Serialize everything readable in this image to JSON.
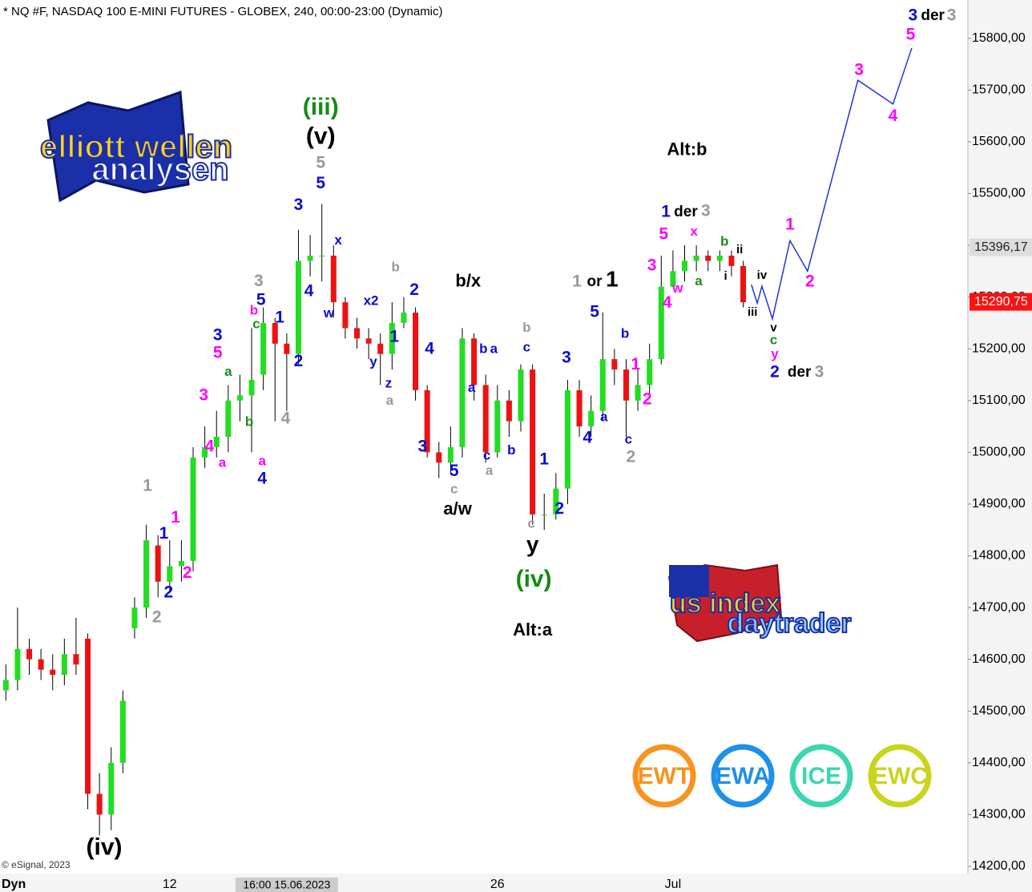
{
  "chart_data": {
    "type": "candlestick",
    "title": "* NQ #F, NASDAQ 100 E-MINI FUTURES - GLOBEX, 240, 00:00-23:00 (Dynamic)",
    "up_color": "#22dd22",
    "down_color": "#ee1111",
    "categories": [
      null,
      null,
      null,
      null,
      null,
      null,
      null,
      null,
      null,
      null,
      null,
      null,
      null,
      null,
      "12",
      null,
      null,
      null,
      null,
      null,
      null,
      null,
      null,
      null,
      null,
      null,
      null,
      null,
      null,
      null,
      null,
      null,
      null,
      null,
      null,
      null,
      null,
      null,
      null,
      null,
      null,
      null,
      "26",
      null,
      null,
      null,
      null,
      null,
      null,
      null,
      null,
      null,
      null,
      null,
      null,
      null,
      null,
      "Jul",
      null,
      null,
      null,
      null,
      null,
      null
    ],
    "cursor": {
      "index": 24,
      "label": "16:00 15.06.2023"
    },
    "open": [
      14540,
      14560,
      14620,
      14600,
      14580,
      14570,
      14610,
      14640,
      14340,
      14300,
      14400,
      14660,
      14700,
      14820,
      14750,
      14780,
      14790,
      14990,
      15010,
      15030,
      15100,
      15110,
      15150,
      15250,
      15210,
      15190,
      15370,
      15380,
      15380,
      15290,
      15240,
      15220,
      15210,
      15190,
      15250,
      15270,
      15120,
      15000,
      14980,
      15010,
      15220,
      15130,
      15000,
      15100,
      15060,
      15160,
      14880,
      14880,
      14930,
      15120,
      15050,
      15080,
      15180,
      15160,
      15100,
      15130,
      15180,
      15320,
      15350,
      15370,
      15380,
      15370,
      15380,
      15360
    ],
    "high": [
      14590,
      14700,
      14640,
      14620,
      14610,
      14640,
      14680,
      14650,
      14380,
      14430,
      14540,
      14720,
      14860,
      14840,
      14830,
      14830,
      15010,
      15050,
      15080,
      15130,
      15150,
      15240,
      15280,
      15260,
      15230,
      15430,
      15420,
      15480,
      15400,
      15300,
      15260,
      15240,
      15230,
      15290,
      15300,
      15280,
      15130,
      15020,
      15050,
      15240,
      15230,
      15150,
      15130,
      15120,
      15170,
      15170,
      14920,
      14960,
      15140,
      15140,
      15110,
      15270,
      15200,
      15180,
      15160,
      15210,
      15380,
      15390,
      15400,
      15400,
      15390,
      15390,
      15390,
      15370
    ],
    "low": [
      14520,
      14540,
      14570,
      14560,
      14540,
      14550,
      14570,
      14310,
      14260,
      14270,
      14380,
      14640,
      14680,
      14720,
      14730,
      14750,
      14770,
      14970,
      14990,
      15000,
      15060,
      15000,
      15120,
      15060,
      15080,
      15170,
      15340,
      15330,
      15260,
      15220,
      15200,
      15180,
      15130,
      15160,
      15240,
      15100,
      14990,
      14950,
      14960,
      14990,
      15100,
      14980,
      14990,
      15030,
      15040,
      14860,
      14850,
      14870,
      14900,
      15030,
      15030,
      15060,
      15130,
      15030,
      15080,
      15110,
      15170,
      15320,
      15330,
      15350,
      15350,
      15350,
      15340,
      15280
    ],
    "close": [
      14560,
      14620,
      14600,
      14580,
      14570,
      14610,
      14590,
      14340,
      14300,
      14400,
      14520,
      14700,
      14830,
      14750,
      14780,
      14790,
      14990,
      15010,
      15030,
      15100,
      15110,
      15140,
      15250,
      15210,
      15190,
      15370,
      15380,
      15380,
      15290,
      15240,
      15220,
      15210,
      15190,
      15250,
      15270,
      15120,
      15000,
      14980,
      15010,
      15220,
      15130,
      15000,
      15100,
      15060,
      15160,
      14880,
      14880,
      14930,
      15120,
      15050,
      15080,
      15180,
      15160,
      15100,
      15130,
      15180,
      15320,
      15350,
      15370,
      15380,
      15370,
      15380,
      15360,
      15290
    ],
    "projection": {
      "color": "#2233dd",
      "x": [
        63.7,
        64.2,
        64.6,
        65.5,
        67.0,
        68.5,
        72.8,
        75.8,
        77.4
      ],
      "values": [
        15324,
        15288,
        15321,
        15258,
        15409,
        15350,
        15719,
        15673,
        15781
      ]
    },
    "xlim": [
      -0.5,
      82.2
    ],
    "ylim": [
      14186,
      15874
    ],
    "yticks": [
      {
        "value": 14200,
        "label": "14200,00"
      },
      {
        "value": 14300,
        "label": "14300,00"
      },
      {
        "value": 14400,
        "label": "14400,00"
      },
      {
        "value": 14500,
        "label": "14500,00"
      },
      {
        "value": 14600,
        "label": "14600,00"
      },
      {
        "value": 14700,
        "label": "14700,00"
      },
      {
        "value": 14800,
        "label": "14800,00"
      },
      {
        "value": 14900,
        "label": "14900,00"
      },
      {
        "value": 15000,
        "label": "15000,00"
      },
      {
        "value": 15100,
        "label": "15100,00"
      },
      {
        "value": 15200,
        "label": "15200,00"
      },
      {
        "value": 15300,
        "label": "15300,00"
      },
      {
        "value": 15400,
        "label": "15400,00"
      },
      {
        "value": 15500,
        "label": "15500,00"
      },
      {
        "value": 15600,
        "label": "15600,00"
      },
      {
        "value": 15700,
        "label": "15700,00"
      },
      {
        "value": 15800,
        "label": "15800,00"
      }
    ],
    "marker_price": {
      "value": 15396.17,
      "label": "15396,17",
      "color": "#dddddd"
    },
    "last_price": {
      "value": 15290.75,
      "label": "15290,75",
      "color": "#ff1111"
    },
    "annotations": [
      {
        "text": "(iv)",
        "color": "#000000",
        "x": 8.4,
        "y": 14235
      },
      {
        "text": "1",
        "color": "#999999",
        "x": 12.1,
        "y": 14934
      },
      {
        "text": "2",
        "color": "#999999",
        "x": 12.9,
        "y": 14680
      },
      {
        "text": "1",
        "color": "#0a0ad6",
        "x": 13.5,
        "y": 14842
      },
      {
        "text": "2",
        "color": "#0a0ad6",
        "x": 13.9,
        "y": 14728
      },
      {
        "text": "1",
        "color": "#ff00ff",
        "x": 14.5,
        "y": 14873
      },
      {
        "text": "2",
        "color": "#ff00ff",
        "x": 15.5,
        "y": 14766
      },
      {
        "text": "3",
        "color": "#ff00ff",
        "x": 16.9,
        "y": 15109
      },
      {
        "text": "4",
        "color": "#ff00ff",
        "x": 17.4,
        "y": 15010
      },
      {
        "text": "a",
        "color": "#ff00ff",
        "x": 18.5,
        "y": 14979
      },
      {
        "text": "3",
        "color": "#0a0ad6",
        "x": 18.1,
        "y": 15225
      },
      {
        "text": "5",
        "color": "#ff00ff",
        "x": 18.1,
        "y": 15191
      },
      {
        "text": "a",
        "color": "#1c8a1c",
        "x": 19.0,
        "y": 15155
      },
      {
        "text": "b",
        "color": "#1c8a1c",
        "x": 20.8,
        "y": 15058
      },
      {
        "text": "a",
        "color": "#ff00ff",
        "x": 21.9,
        "y": 14982
      },
      {
        "text": "4",
        "color": "#0a0ad6",
        "x": 21.9,
        "y": 14948
      },
      {
        "text": "3",
        "color": "#999999",
        "x": 21.6,
        "y": 15330
      },
      {
        "text": "5",
        "color": "#0a0ad6",
        "x": 21.8,
        "y": 15293
      },
      {
        "text": "b",
        "color": "#ff00ff",
        "x": 21.2,
        "y": 15273
      },
      {
        "text": "c",
        "color": "#1c8a1c",
        "x": 21.4,
        "y": 15247
      },
      {
        "text": "1",
        "color": "#0a0ad6",
        "x": 23.4,
        "y": 15259
      },
      {
        "text": "2",
        "color": "#0a0ad6",
        "x": 25.0,
        "y": 15175
      },
      {
        "text": "4",
        "color": "#999999",
        "x": 23.9,
        "y": 15064
      },
      {
        "text": "3",
        "color": "#0a0ad6",
        "x": 25.0,
        "y": 15477
      },
      {
        "text": "4",
        "color": "#0a0ad6",
        "x": 25.9,
        "y": 15310
      },
      {
        "text": "5",
        "color": "#999999",
        "x": 26.9,
        "y": 15558
      },
      {
        "text": "5",
        "color": "#0a0ad6",
        "x": 26.9,
        "y": 15519
      },
      {
        "text": "(v)",
        "color": "#000000",
        "x": 26.9,
        "y": 15608
      },
      {
        "text": "(iii)",
        "color": "#148c14",
        "x": 26.9,
        "y": 15665
      },
      {
        "text": "x",
        "color": "#0a0ad6",
        "x": 28.4,
        "y": 15409
      },
      {
        "text": "w",
        "color": "#0a0ad6",
        "x": 27.6,
        "y": 15268
      },
      {
        "text": "x2",
        "color": "#0a0ad6",
        "x": 31.2,
        "y": 15292
      },
      {
        "text": "y",
        "color": "#0a0ad6",
        "x": 31.4,
        "y": 15174
      },
      {
        "text": "1",
        "color": "#0a0ad6",
        "x": 33.2,
        "y": 15222
      },
      {
        "text": "z",
        "color": "#0a0ad6",
        "x": 32.7,
        "y": 15132
      },
      {
        "text": "a",
        "color": "#999999",
        "x": 32.8,
        "y": 15099
      },
      {
        "text": "b",
        "color": "#999999",
        "x": 33.3,
        "y": 15357
      },
      {
        "text": "2",
        "color": "#0a0ad6",
        "x": 34.9,
        "y": 15313
      },
      {
        "text": "4",
        "color": "#0a0ad6",
        "x": 36.2,
        "y": 15199
      },
      {
        "text": "3",
        "color": "#0a0ad6",
        "x": 35.6,
        "y": 15010
      },
      {
        "text": "5",
        "color": "#0a0ad6",
        "x": 38.3,
        "y": 14963
      },
      {
        "text": "c",
        "color": "#999999",
        "x": 38.3,
        "y": 14928
      },
      {
        "text": "b/x",
        "color": "#000000",
        "x": 39.5,
        "y": 15329
      },
      {
        "text": "a/w",
        "color": "#000000",
        "x": 38.6,
        "y": 14889
      },
      {
        "text": "a",
        "color": "#0a0ad6",
        "x": 39.8,
        "y": 15124
      },
      {
        "text": "b",
        "color": "#0a0ad6",
        "x": 40.8,
        "y": 15199
      },
      {
        "text": "a",
        "color": "#0a0ad6",
        "x": 41.7,
        "y": 15199
      },
      {
        "text": "c",
        "color": "#0a0ad6",
        "x": 41.1,
        "y": 14993
      },
      {
        "text": "a",
        "color": "#999999",
        "x": 41.3,
        "y": 14963
      },
      {
        "text": "b",
        "color": "#0a0ad6",
        "x": 43.2,
        "y": 15003
      },
      {
        "text": "b",
        "color": "#999999",
        "x": 44.5,
        "y": 15240
      },
      {
        "text": "c",
        "color": "#0a0ad6",
        "x": 44.5,
        "y": 15202
      },
      {
        "text": "c",
        "color": "#999999",
        "x": 44.9,
        "y": 14861
      },
      {
        "text": "y",
        "color": "#000000",
        "x": 45.0,
        "y": 14819
      },
      {
        "text": "(iv)",
        "color": "#148c14",
        "x": 45.1,
        "y": 14753
      },
      {
        "text": "Alt:a",
        "color": "#000000",
        "x": 45.0,
        "y": 14655
      },
      {
        "text": "1",
        "color": "#0a0ad6",
        "x": 46.0,
        "y": 14985
      },
      {
        "text": "2",
        "color": "#0a0ad6",
        "x": 47.3,
        "y": 14890
      },
      {
        "text": "3",
        "color": "#0a0ad6",
        "x": 47.9,
        "y": 15182
      },
      {
        "text": "4",
        "color": "#0a0ad6",
        "x": 49.7,
        "y": 15027
      },
      {
        "text": "5",
        "color": "#0a0ad6",
        "x": 50.3,
        "y": 15270
      },
      {
        "text": "a",
        "color": "#0a0ad6",
        "x": 51.1,
        "y": 15067
      },
      {
        "text": "b",
        "color": "#0a0ad6",
        "x": 52.9,
        "y": 15228
      },
      {
        "text": "c",
        "color": "#0a0ad6",
        "x": 53.2,
        "y": 15024
      },
      {
        "text": "2",
        "color": "#999999",
        "x": 53.4,
        "y": 14990
      },
      {
        "text": "1",
        "color": "#ff00ff",
        "x": 53.8,
        "y": 15169
      },
      {
        "text": "2",
        "color": "#ff00ff",
        "x": 54.8,
        "y": 15101
      },
      {
        "text": "1",
        "color": "#999999",
        "x": 48.8,
        "y": 15329
      },
      {
        "text": "or",
        "color": "#000000",
        "x": 50.3,
        "y": 15329
      },
      {
        "text": "1",
        "color": "#000000",
        "x": 51.8,
        "y": 15332
      },
      {
        "text": "3",
        "color": "#ff00ff",
        "x": 55.2,
        "y": 15360
      },
      {
        "text": "4",
        "color": "#ff00ff",
        "x": 56.5,
        "y": 15288
      },
      {
        "text": "5",
        "color": "#ff00ff",
        "x": 56.2,
        "y": 15420
      },
      {
        "text": "w",
        "color": "#ff00ff",
        "x": 57.4,
        "y": 15316
      },
      {
        "text": "x",
        "color": "#ff00ff",
        "x": 58.8,
        "y": 15426
      },
      {
        "text": "a",
        "color": "#1c8a1c",
        "x": 59.2,
        "y": 15330
      },
      {
        "text": "b",
        "color": "#1c8a1c",
        "x": 61.4,
        "y": 15406
      },
      {
        "text": "ii",
        "color": "#000000",
        "x": 62.7,
        "y": 15391
      },
      {
        "text": "i",
        "color": "#000000",
        "x": 61.5,
        "y": 15340
      },
      {
        "text": "iv",
        "color": "#000000",
        "x": 64.6,
        "y": 15341
      },
      {
        "text": "iii",
        "color": "#000000",
        "x": 63.8,
        "y": 15270
      },
      {
        "text": "v",
        "color": "#000000",
        "x": 65.6,
        "y": 15240
      },
      {
        "text": "c",
        "color": "#1c8a1c",
        "x": 65.6,
        "y": 15216
      },
      {
        "text": "y",
        "color": "#ff00ff",
        "x": 65.7,
        "y": 15189
      },
      {
        "text": "2",
        "color": "#0a0ad6",
        "x": 65.7,
        "y": 15154
      },
      {
        "text": "der",
        "color": "#000000",
        "x": 67.8,
        "y": 15154
      },
      {
        "text": "3",
        "color": "#999999",
        "x": 69.5,
        "y": 15154
      },
      {
        "text": "1",
        "color": "#0a0ad6",
        "x": 56.4,
        "y": 15464
      },
      {
        "text": "der",
        "color": "#000000",
        "x": 58.1,
        "y": 15464
      },
      {
        "text": "3",
        "color": "#999999",
        "x": 59.8,
        "y": 15465
      },
      {
        "text": "Alt:b",
        "color": "#000000",
        "x": 58.2,
        "y": 15583
      },
      {
        "text": "1",
        "color": "#ff00ff",
        "x": 67.0,
        "y": 15439
      },
      {
        "text": "2",
        "color": "#ff00ff",
        "x": 68.7,
        "y": 15329
      },
      {
        "text": "3",
        "color": "#ff00ff",
        "x": 72.9,
        "y": 15738
      },
      {
        "text": "4",
        "color": "#ff00ff",
        "x": 75.8,
        "y": 15649
      },
      {
        "text": "5",
        "color": "#ff00ff",
        "x": 77.3,
        "y": 15806
      },
      {
        "text": "3",
        "color": "#0a0ad6",
        "x": 77.5,
        "y": 15843
      },
      {
        "text": "der",
        "color": "#000000",
        "x": 79.2,
        "y": 15843
      },
      {
        "text": "3",
        "color": "#999999",
        "x": 80.8,
        "y": 15843
      }
    ]
  },
  "logos": {
    "ewa_top": "elliott wellen",
    "ewa_bottom": "analysen",
    "us_top": "us index",
    "us_bottom": "daytrader"
  },
  "badges": [
    {
      "text": "EWT",
      "color": "#f7931e"
    },
    {
      "text": "EWA",
      "color": "#1e90e8"
    },
    {
      "text": "ICE",
      "color": "#3ad6b0"
    },
    {
      "text": "EWC",
      "color": "#c8d41e"
    }
  ],
  "footer": {
    "copyright": "© eSignal, 2023",
    "mode": "Dyn"
  }
}
